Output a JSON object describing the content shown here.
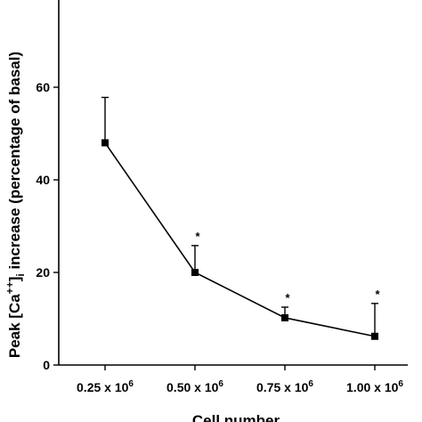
{
  "chart_data": {
    "type": "line",
    "title": "",
    "xlabel": "Cell number",
    "ylabel_parts": {
      "prefix": "Peak [Ca",
      "superscript": "++",
      "middle": "]",
      "subscript": "i",
      "suffix": " increase (percentage of basal)"
    },
    "x_ticks": [
      {
        "base": "0.25 x 10",
        "exp": "6"
      },
      {
        "base": "0.50 x 10",
        "exp": "6"
      },
      {
        "base": "0.75 x 10",
        "exp": "6"
      },
      {
        "base": "1.00 x 10",
        "exp": "6"
      }
    ],
    "y_ticks": [
      "0",
      "20",
      "40",
      "60"
    ],
    "ylim": [
      0,
      80
    ],
    "grid": false,
    "series": [
      {
        "values": [
          48,
          20,
          10.2,
          6.2
        ],
        "error_upper": [
          57.8,
          25.8,
          12.5,
          13.3
        ],
        "significance": [
          "",
          "*",
          "*",
          "*"
        ],
        "marker": "square",
        "color": "#000000"
      }
    ]
  }
}
